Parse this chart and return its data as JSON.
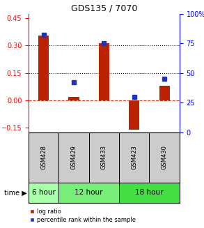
{
  "title": "GDS135 / 7070",
  "samples": [
    "GSM428",
    "GSM429",
    "GSM433",
    "GSM423",
    "GSM430"
  ],
  "log_ratio": [
    0.355,
    0.018,
    0.312,
    -0.162,
    0.078
  ],
  "percentile": [
    82,
    42,
    75,
    30,
    45
  ],
  "time_groups": [
    {
      "label": "6 hour",
      "start": 0,
      "end": 1,
      "color": "#aaffaa"
    },
    {
      "label": "12 hour",
      "start": 1,
      "end": 3,
      "color": "#77ee77"
    },
    {
      "label": "18 hour",
      "start": 3,
      "end": 5,
      "color": "#44dd44"
    }
  ],
  "ylim_left": [
    -0.175,
    0.475
  ],
  "ylim_right": [
    0,
    100
  ],
  "yticks_left": [
    -0.15,
    0,
    0.15,
    0.3,
    0.45
  ],
  "yticks_right": [
    0,
    25,
    50,
    75,
    100
  ],
  "ytick_labels_right": [
    "0",
    "25",
    "50",
    "75",
    "100%"
  ],
  "hlines": [
    0.15,
    0.3
  ],
  "bar_color": "#bb2200",
  "dot_color": "#2233bb",
  "zero_line_color": "#cc3311",
  "background_color": "#ffffff",
  "plot_bg_color": "#ffffff",
  "label_box_color": "#cccccc",
  "legend_items": [
    {
      "color": "#bb2200",
      "label": "log ratio"
    },
    {
      "color": "#2233bb",
      "label": "percentile rank within the sample"
    }
  ]
}
